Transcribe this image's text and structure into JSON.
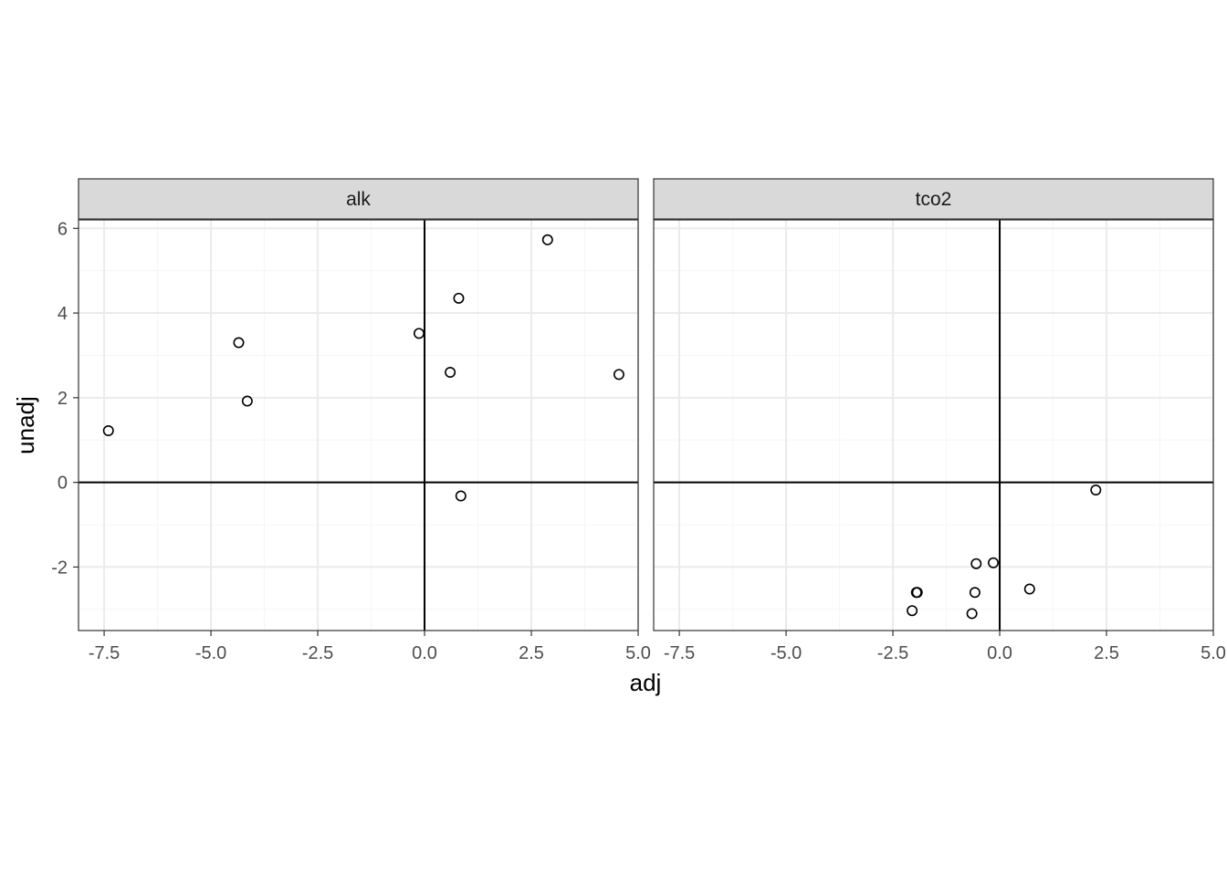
{
  "chart_data": {
    "type": "scatter",
    "xlabel": "adj",
    "ylabel": "unadj",
    "xlim": [
      -8.1,
      5.0
    ],
    "ylim": [
      -3.5,
      6.2
    ],
    "xticks": [
      -7.5,
      -5.0,
      -2.5,
      0.0,
      2.5,
      5.0
    ],
    "xtick_labels": [
      "-7.5",
      "-5.0",
      "-2.5",
      "0.0",
      "2.5",
      "5.0"
    ],
    "yticks": [
      -2,
      0,
      2,
      4,
      6
    ],
    "ytick_labels": [
      "-2",
      "0",
      "2",
      "4",
      "6"
    ],
    "reference_lines": {
      "x": 0,
      "y": 0
    },
    "grid": true,
    "panels": [
      {
        "label": "alk",
        "x": [
          -7.4,
          -4.35,
          -4.15,
          -0.13,
          0.6,
          0.8,
          0.85,
          2.88,
          4.55
        ],
        "y": [
          1.22,
          3.3,
          1.92,
          3.52,
          2.6,
          4.35,
          -0.32,
          5.73,
          2.55
        ]
      },
      {
        "label": "tco2",
        "x": [
          2.25,
          -0.15,
          -0.55,
          -1.95,
          -1.93,
          -0.58,
          0.7,
          -2.05,
          -0.65
        ],
        "y": [
          -0.18,
          -1.9,
          -1.92,
          -2.6,
          -2.6,
          -2.6,
          -2.52,
          -3.03,
          -3.1
        ]
      }
    ]
  },
  "colors": {
    "background": "#ffffff",
    "strip_fill": "#d9d9d9",
    "strip_border": "#333333",
    "grid_major": "#ebebeb",
    "grid_minor": "#f5f5f5",
    "reference_line": "#000000",
    "point_stroke": "#000000",
    "tick_text": "#4d4d4d"
  }
}
